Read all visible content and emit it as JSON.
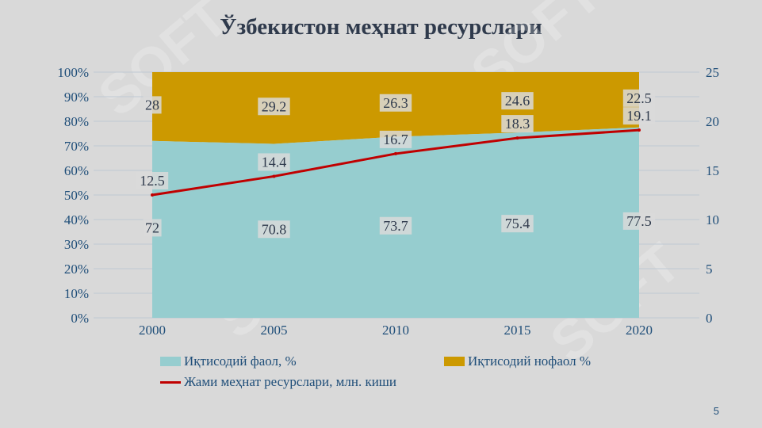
{
  "slide": {
    "page_number": "5"
  },
  "watermark": {
    "text": "SOFT"
  },
  "colors": {
    "background": "#d9d9d9",
    "active": "#96cdcf",
    "inactive": "#cc9900",
    "line": "#c00000",
    "axis_text": "#1f4e79",
    "grid": "#bfc9d4"
  },
  "chart_data": {
    "type": "area",
    "title": "Ўзбекистон меҳнат ресурслари",
    "x": [
      "2000",
      "2005",
      "2010",
      "2015",
      "2020"
    ],
    "series": [
      {
        "name": "Иқтисодий фаол, %",
        "kind": "stacked-area",
        "axis": "left",
        "values": [
          72,
          70.8,
          73.7,
          75.4,
          77.5
        ]
      },
      {
        "name": "Иқтисодий нофаол %",
        "kind": "stacked-area",
        "axis": "left",
        "values": [
          28,
          29.2,
          26.3,
          24.6,
          22.5
        ]
      },
      {
        "name": "Жами меҳнат ресурслари, млн. киши",
        "kind": "line",
        "axis": "right",
        "values": [
          12.5,
          14.4,
          16.7,
          18.3,
          19.1
        ]
      }
    ],
    "y_left": {
      "ticks": [
        "0%",
        "10%",
        "20%",
        "30%",
        "40%",
        "50%",
        "60%",
        "70%",
        "80%",
        "90%",
        "100%"
      ],
      "lim": [
        0,
        100
      ]
    },
    "y_right": {
      "ticks": [
        "0",
        "5",
        "10",
        "15",
        "20",
        "25"
      ],
      "lim": [
        0,
        25
      ]
    },
    "grid": true,
    "legend_position": "bottom"
  }
}
